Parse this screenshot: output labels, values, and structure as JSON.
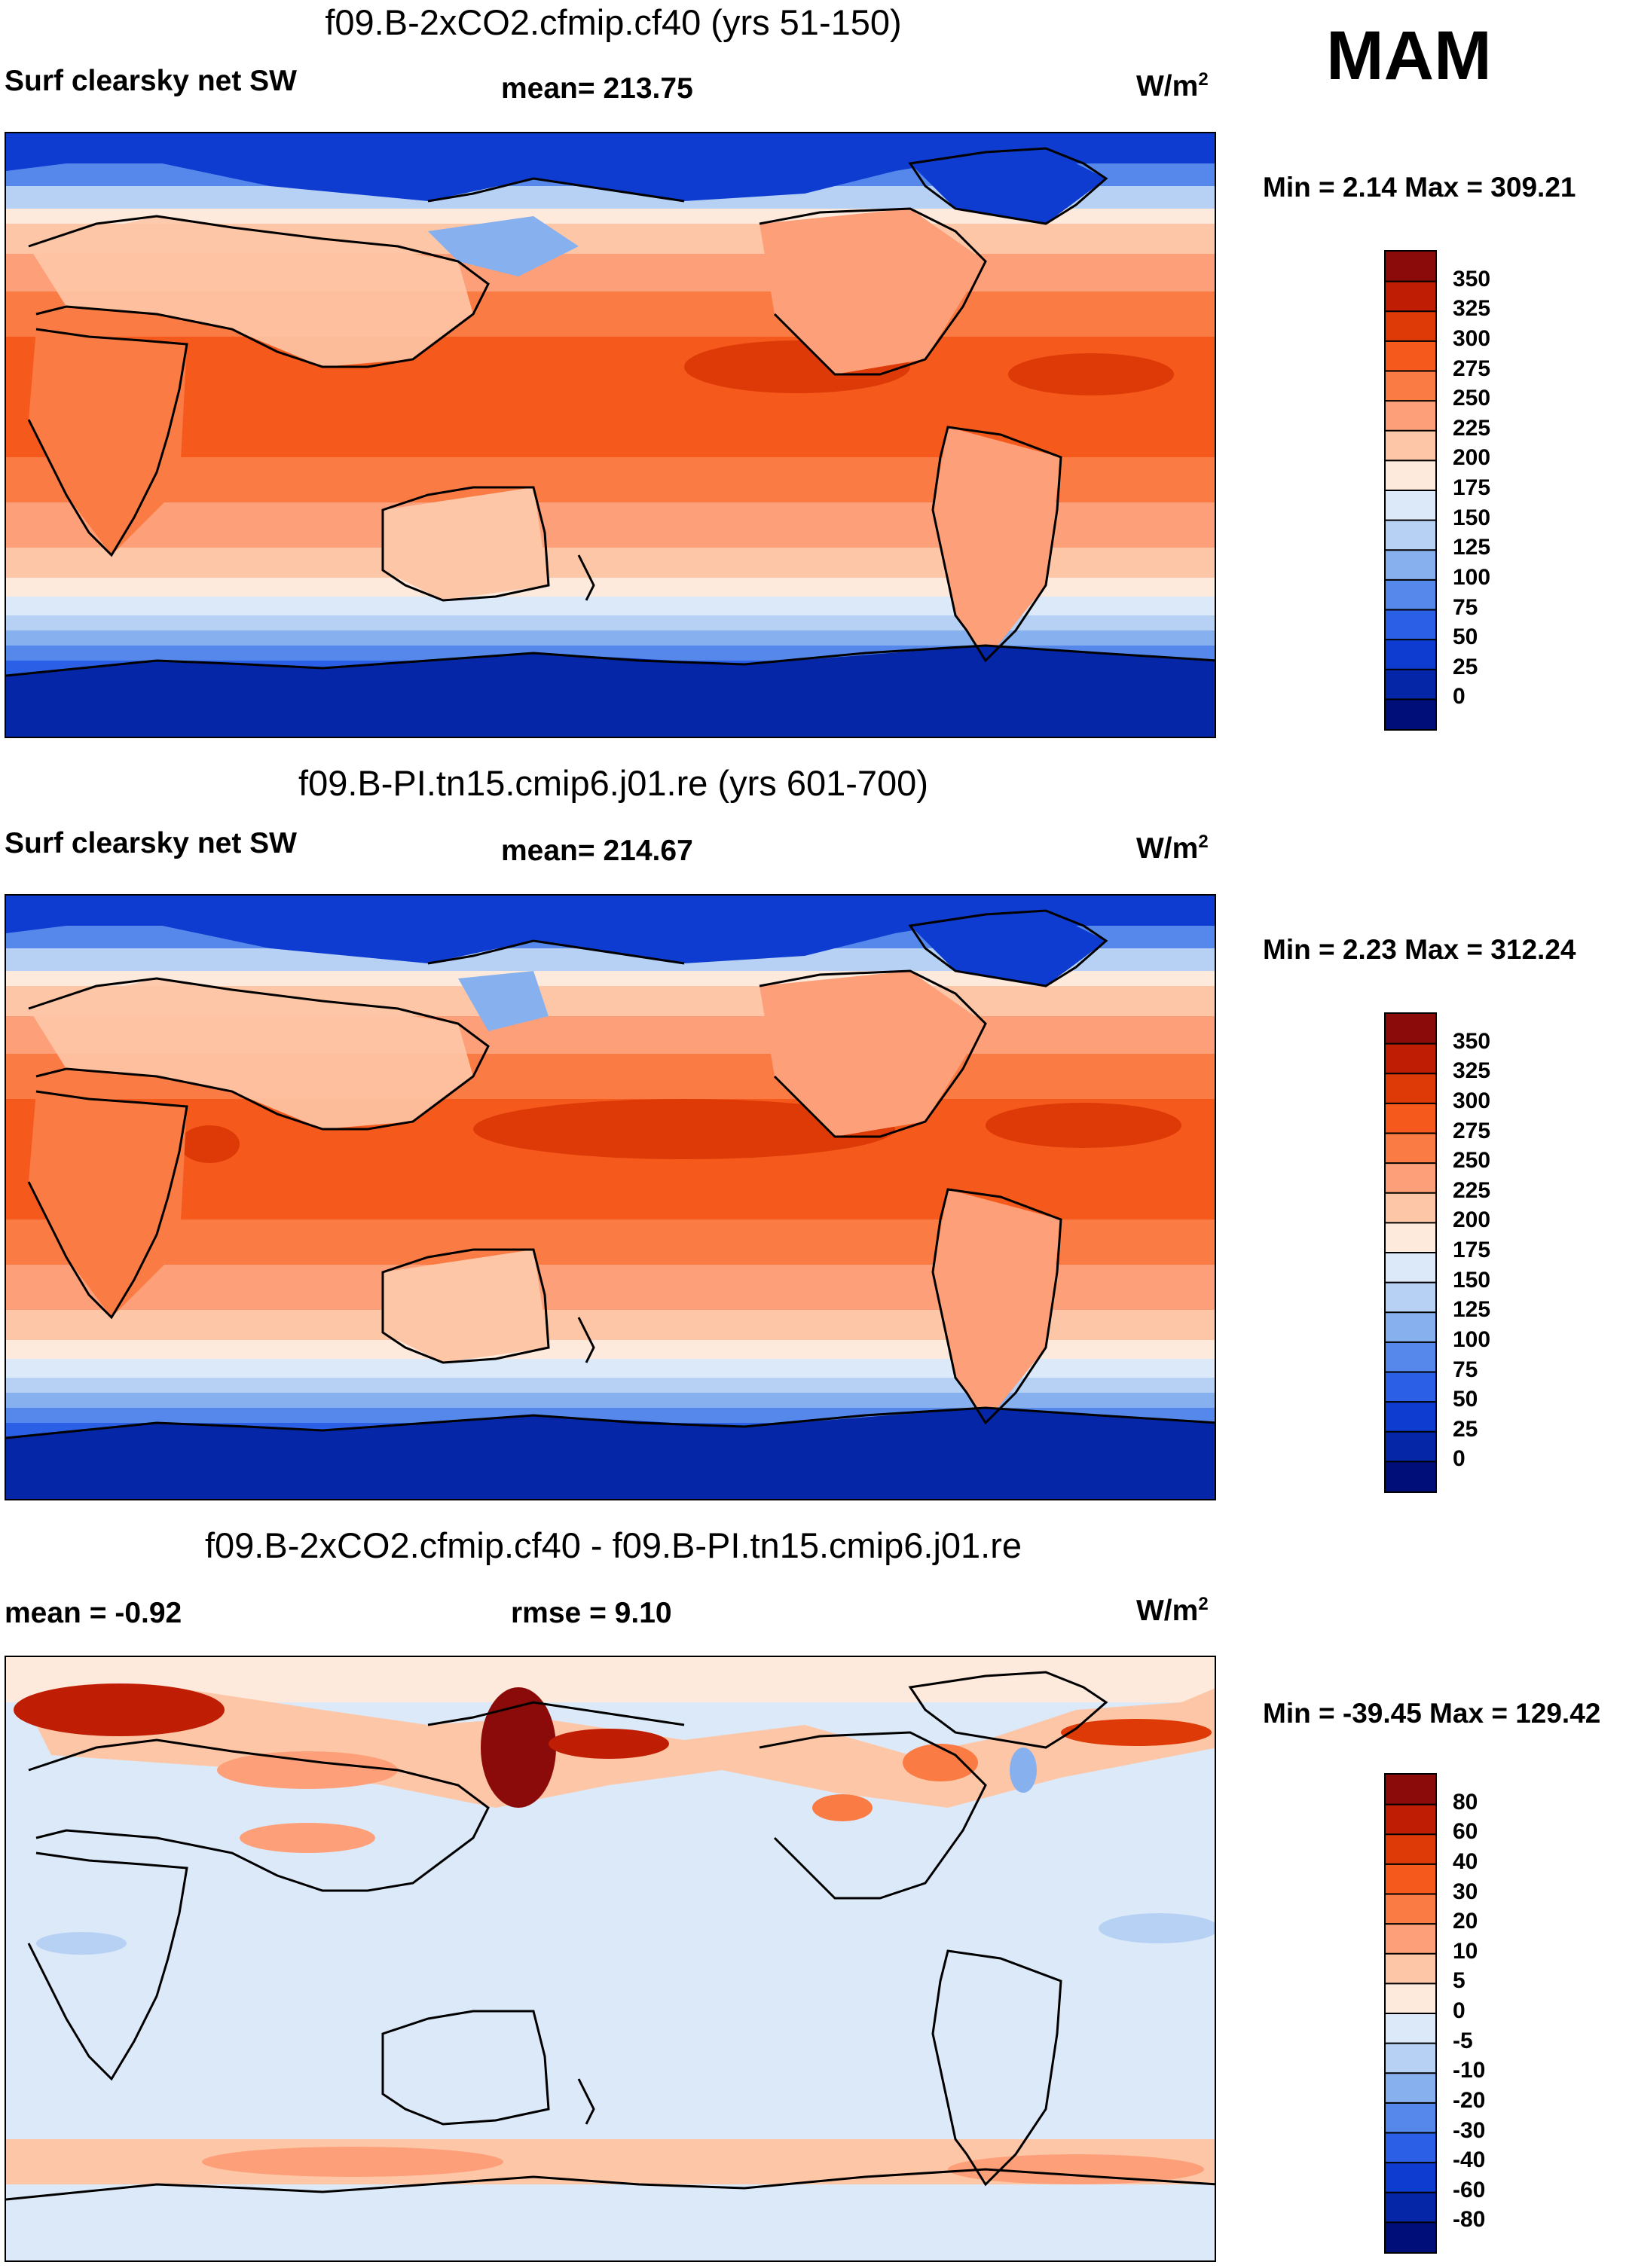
{
  "season": "MAM",
  "panels": [
    {
      "title": "f09.B-2xCO2.cfmip.cf40 (yrs 51-150)",
      "left_label": "Surf clearsky net SW",
      "center_label": "mean= 213.75",
      "units_base": "W/m",
      "units_sup": "2",
      "minmax": "Min =   2.14 Max = 309.21",
      "kind": "abs"
    },
    {
      "title": "f09.B-PI.tn15.cmip6.j01.re (yrs 601-700)",
      "left_label": "Surf clearsky net SW",
      "center_label": "mean= 214.67",
      "units_base": "W/m",
      "units_sup": "2",
      "minmax": "Min =   2.23 Max = 312.24",
      "kind": "abs"
    },
    {
      "title": "f09.B-2xCO2.cfmip.cf40 - f09.B-PI.tn15.cmip6.j01.re",
      "left_label": "mean =  -0.92",
      "center_label": "rmse =    9.10",
      "units_base": "W/m",
      "units_sup": "2",
      "minmax": "Min = -39.45 Max = 129.42",
      "kind": "diff"
    }
  ],
  "colorbars": {
    "abs": {
      "labels": [
        "350",
        "325",
        "300",
        "275",
        "250",
        "225",
        "200",
        "175",
        "150",
        "125",
        "100",
        "75",
        "50",
        "25",
        "0"
      ],
      "colors": [
        "#8b0a0a",
        "#c01e04",
        "#dd3a07",
        "#f55a1c",
        "#fb7b44",
        "#fda07a",
        "#fdc7a7",
        "#feeadc",
        "#dce9f8",
        "#b6d1f4",
        "#87b1ee",
        "#5688ec",
        "#2a5fe6",
        "#0f3cd0",
        "#0626a8",
        "#000e7a"
      ]
    },
    "diff": {
      "labels": [
        "80",
        "60",
        "40",
        "30",
        "20",
        "10",
        "5",
        "0",
        "-5",
        "-10",
        "-20",
        "-30",
        "-40",
        "-60",
        "-80"
      ],
      "colors": [
        "#8b0a0a",
        "#c01e04",
        "#dd3a07",
        "#f55a1c",
        "#fb7b44",
        "#fda07a",
        "#fdc7a7",
        "#feeadc",
        "#dce9f8",
        "#b6d1f4",
        "#87b1ee",
        "#5688ec",
        "#2a5fe6",
        "#0f3cd0",
        "#0626a8",
        "#000e7a"
      ]
    }
  }
}
